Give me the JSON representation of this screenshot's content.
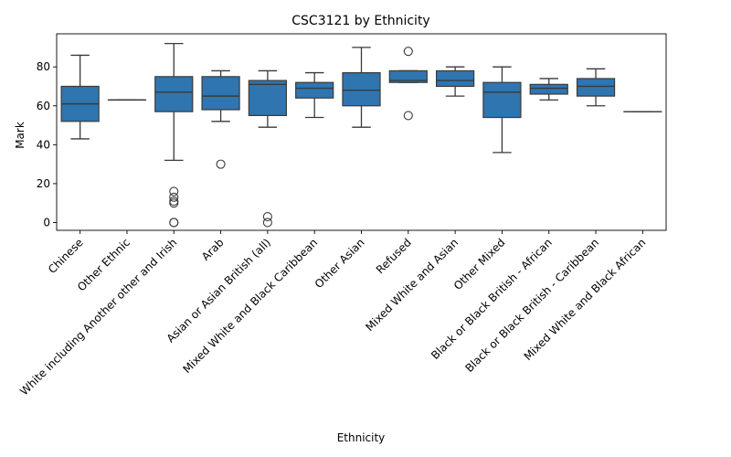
{
  "chart_data": {
    "type": "box",
    "title": "CSC3121 by Ethnicity",
    "xlabel": "Ethnicity",
    "ylabel": "Mark",
    "ylim": [
      -4,
      97
    ],
    "yticks": [
      0,
      20,
      40,
      60,
      80
    ],
    "grid": false,
    "legend": "none",
    "box_color": "#2f75b0",
    "line_color": "#3a3a3a",
    "categories": [
      "Chinese",
      "Other Ethnic",
      "White including Another other and Irish",
      "Arab",
      "Asian or Asian British (all)",
      "Mixed White and Black Caribbean",
      "Other Asian",
      "Refused",
      "Mixed White and Asian",
      "Other Mixed",
      "Black or Black British - African",
      "Black or Black British - Caribbean",
      "Mixed White and Black African"
    ],
    "boxes": [
      {
        "whisker_low": 43,
        "q1": 52,
        "median": 61,
        "q3": 70,
        "whisker_high": 86,
        "outliers": []
      },
      {
        "whisker_low": 63,
        "q1": 63,
        "median": 63,
        "q3": 63,
        "whisker_high": 63,
        "outliers": []
      },
      {
        "whisker_low": 32,
        "q1": 57,
        "median": 67,
        "q3": 75,
        "whisker_high": 92,
        "outliers": [
          16,
          13,
          11,
          10,
          0,
          0
        ]
      },
      {
        "whisker_low": 52,
        "q1": 58,
        "median": 65,
        "q3": 75,
        "whisker_high": 78,
        "outliers": [
          30
        ]
      },
      {
        "whisker_low": 49,
        "q1": 55,
        "median": 71,
        "q3": 73,
        "whisker_high": 78,
        "outliers": [
          3,
          0
        ]
      },
      {
        "whisker_low": 54,
        "q1": 64,
        "median": 69,
        "q3": 72,
        "whisker_high": 77,
        "outliers": []
      },
      {
        "whisker_low": 49,
        "q1": 60,
        "median": 68,
        "q3": 77,
        "whisker_high": 90,
        "outliers": []
      },
      {
        "whisker_low": 72,
        "q1": 72,
        "median": 73,
        "q3": 78,
        "whisker_high": 78,
        "outliers": [
          88,
          55
        ]
      },
      {
        "whisker_low": 65,
        "q1": 70,
        "median": 73,
        "q3": 78,
        "whisker_high": 80,
        "outliers": []
      },
      {
        "whisker_low": 36,
        "q1": 54,
        "median": 67,
        "q3": 72,
        "whisker_high": 80,
        "outliers": []
      },
      {
        "whisker_low": 63,
        "q1": 66,
        "median": 69,
        "q3": 71,
        "whisker_high": 74,
        "outliers": []
      },
      {
        "whisker_low": 60,
        "q1": 65,
        "median": 70,
        "q3": 74,
        "whisker_high": 79,
        "outliers": []
      },
      {
        "whisker_low": 57,
        "q1": 57,
        "median": 57,
        "q3": 57,
        "whisker_high": 57,
        "outliers": []
      }
    ]
  }
}
